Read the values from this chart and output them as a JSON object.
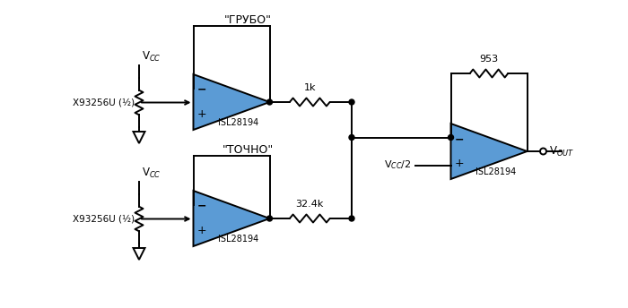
{
  "bg_color": "#ffffff",
  "op_amp_color": "#5b9bd5",
  "line_color": "#000000",
  "labels": {
    "grub": "\"ГРУБО\"",
    "tochno": "\"ТОЧНО\"",
    "vcc_top": "V$_{CC}$",
    "vcc_bot": "V$_{CC}$",
    "x93_top": "X93256U (½)",
    "x93_bot": "X93256U (½)",
    "isl_top": "ISL28194",
    "isl_bot": "ISL28194",
    "isl_right": "ISL28194",
    "r1k": "1k",
    "r32k": "32.4k",
    "r953": "953",
    "vout": "V$_{OUT}$",
    "vcc2": "V$_{CC}$/2"
  },
  "figsize": [
    7.0,
    3.44
  ],
  "dpi": 100
}
